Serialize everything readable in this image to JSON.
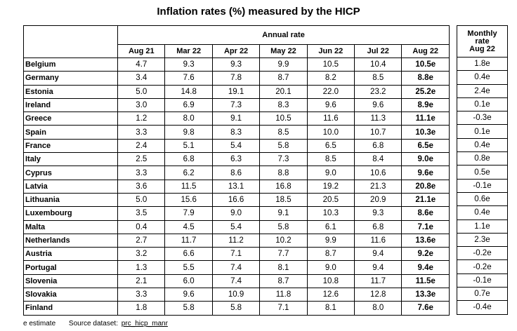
{
  "title": "Inflation rates (%) measured by the HICP",
  "annual_header": "Annual rate",
  "columns": [
    "Aug 21",
    "Mar 22",
    "Apr 22",
    "May 22",
    "Jun 22",
    "Jul 22",
    "Aug 22"
  ],
  "monthly_header_line1": "Monthly",
  "monthly_header_line2": "rate",
  "monthly_column": "Aug 22",
  "rows": [
    {
      "country": "Belgium",
      "values": [
        "4.7",
        "9.3",
        "9.3",
        "9.9",
        "10.5",
        "10.4",
        "10.5e"
      ],
      "monthly": "1.8e"
    },
    {
      "country": "Germany",
      "values": [
        "3.4",
        "7.6",
        "7.8",
        "8.7",
        "8.2",
        "8.5",
        "8.8e"
      ],
      "monthly": "0.4e"
    },
    {
      "country": "Estonia",
      "values": [
        "5.0",
        "14.8",
        "19.1",
        "20.1",
        "22.0",
        "23.2",
        "25.2e"
      ],
      "monthly": "2.4e"
    },
    {
      "country": "Ireland",
      "values": [
        "3.0",
        "6.9",
        "7.3",
        "8.3",
        "9.6",
        "9.6",
        "8.9e"
      ],
      "monthly": "0.1e"
    },
    {
      "country": "Greece",
      "values": [
        "1.2",
        "8.0",
        "9.1",
        "10.5",
        "11.6",
        "11.3",
        "11.1e"
      ],
      "monthly": "-0.3e"
    },
    {
      "country": "Spain",
      "values": [
        "3.3",
        "9.8",
        "8.3",
        "8.5",
        "10.0",
        "10.7",
        "10.3e"
      ],
      "monthly": "0.1e"
    },
    {
      "country": "France",
      "values": [
        "2.4",
        "5.1",
        "5.4",
        "5.8",
        "6.5",
        "6.8",
        "6.5e"
      ],
      "monthly": "0.4e"
    },
    {
      "country": "Italy",
      "values": [
        "2.5",
        "6.8",
        "6.3",
        "7.3",
        "8.5",
        "8.4",
        "9.0e"
      ],
      "monthly": "0.8e"
    },
    {
      "country": "Cyprus",
      "values": [
        "3.3",
        "6.2",
        "8.6",
        "8.8",
        "9.0",
        "10.6",
        "9.6e"
      ],
      "monthly": "0.5e"
    },
    {
      "country": "Latvia",
      "values": [
        "3.6",
        "11.5",
        "13.1",
        "16.8",
        "19.2",
        "21.3",
        "20.8e"
      ],
      "monthly": "-0.1e"
    },
    {
      "country": "Lithuania",
      "values": [
        "5.0",
        "15.6",
        "16.6",
        "18.5",
        "20.5",
        "20.9",
        "21.1e"
      ],
      "monthly": "0.6e"
    },
    {
      "country": "Luxembourg",
      "values": [
        "3.5",
        "7.9",
        "9.0",
        "9.1",
        "10.3",
        "9.3",
        "8.6e"
      ],
      "monthly": "0.4e"
    },
    {
      "country": "Malta",
      "values": [
        "0.4",
        "4.5",
        "5.4",
        "5.8",
        "6.1",
        "6.8",
        "7.1e"
      ],
      "monthly": "1.1e"
    },
    {
      "country": "Netherlands",
      "values": [
        "2.7",
        "11.7",
        "11.2",
        "10.2",
        "9.9",
        "11.6",
        "13.6e"
      ],
      "monthly": "2.3e"
    },
    {
      "country": "Austria",
      "values": [
        "3.2",
        "6.6",
        "7.1",
        "7.7",
        "8.7",
        "9.4",
        "9.2e"
      ],
      "monthly": "-0.2e"
    },
    {
      "country": "Portugal",
      "values": [
        "1.3",
        "5.5",
        "7.4",
        "8.1",
        "9.0",
        "9.4",
        "9.4e"
      ],
      "monthly": "-0.2e"
    },
    {
      "country": "Slovenia",
      "values": [
        "2.1",
        "6.0",
        "7.4",
        "8.7",
        "10.8",
        "11.7",
        "11.5e"
      ],
      "monthly": "-0.1e"
    },
    {
      "country": "Slovakia",
      "values": [
        "3.3",
        "9.6",
        "10.9",
        "11.8",
        "12.6",
        "12.8",
        "13.3e"
      ],
      "monthly": "0.7e"
    },
    {
      "country": "Finland",
      "values": [
        "1.8",
        "5.8",
        "5.8",
        "7.1",
        "8.1",
        "8.0",
        "7.6e"
      ],
      "monthly": "-0.4e"
    }
  ],
  "footer": {
    "note": "e estimate",
    "source_label": "Source dataset:",
    "source_link": "prc_hicp_manr"
  }
}
